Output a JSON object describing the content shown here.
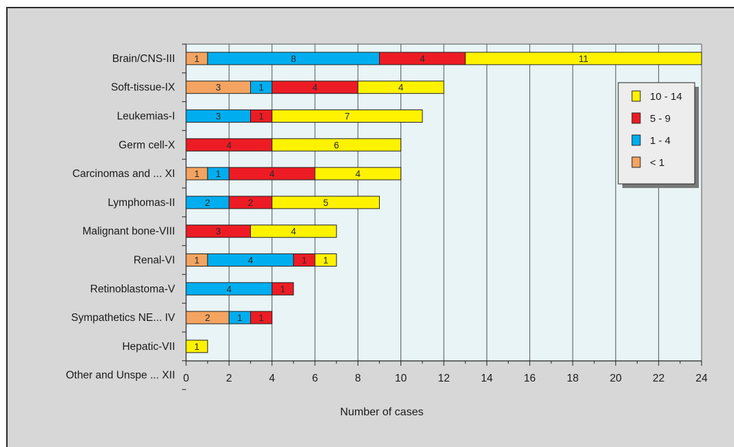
{
  "chart_data": {
    "type": "bar",
    "orientation": "horizontal",
    "stacked": true,
    "categories": [
      "Brain/CNS-III",
      "Soft-tissue-IX",
      "Leukemias-I",
      "Germ cell-X",
      "Carcinomas and ... XI",
      "Lymphomas-II",
      "Malignant bone-VIII",
      "Renal-VI",
      "Retinoblastoma-V",
      "Sympathetics NE... IV",
      "Hepatic-VII",
      "Other and Unspe  ... XII"
    ],
    "series": [
      {
        "name": "< 1",
        "color": "#f4a460",
        "values": [
          1,
          3,
          0,
          0,
          1,
          0,
          0,
          1,
          0,
          2,
          0,
          0
        ]
      },
      {
        "name": "1 - 4",
        "color": "#00aeef",
        "values": [
          8,
          1,
          3,
          0,
          1,
          2,
          0,
          4,
          4,
          1,
          0,
          0
        ]
      },
      {
        "name": "5 - 9",
        "color": "#ed1c24",
        "values": [
          4,
          4,
          1,
          4,
          4,
          2,
          3,
          1,
          1,
          1,
          0,
          0
        ]
      },
      {
        "name": "10 - 14",
        "color": "#fff200",
        "values": [
          11,
          4,
          7,
          6,
          4,
          5,
          4,
          1,
          0,
          0,
          1,
          0
        ]
      }
    ],
    "xlim": [
      0,
      24
    ],
    "xticks": [
      "0",
      "2",
      "4",
      "6",
      "8",
      "10",
      "12",
      "14",
      "16",
      "18",
      "20",
      "22",
      "24"
    ],
    "xlabel": "Number of cases",
    "ylabel": "",
    "title": "",
    "grid": "vertical",
    "legend": {
      "placement": "right",
      "order": [
        "10 - 14",
        "5 - 9",
        "1 - 4",
        "< 1"
      ]
    },
    "colors": {
      "plot_background": "#e8f4f6",
      "panel_background": "#d7d7d7",
      "gridline": "#555555"
    }
  }
}
